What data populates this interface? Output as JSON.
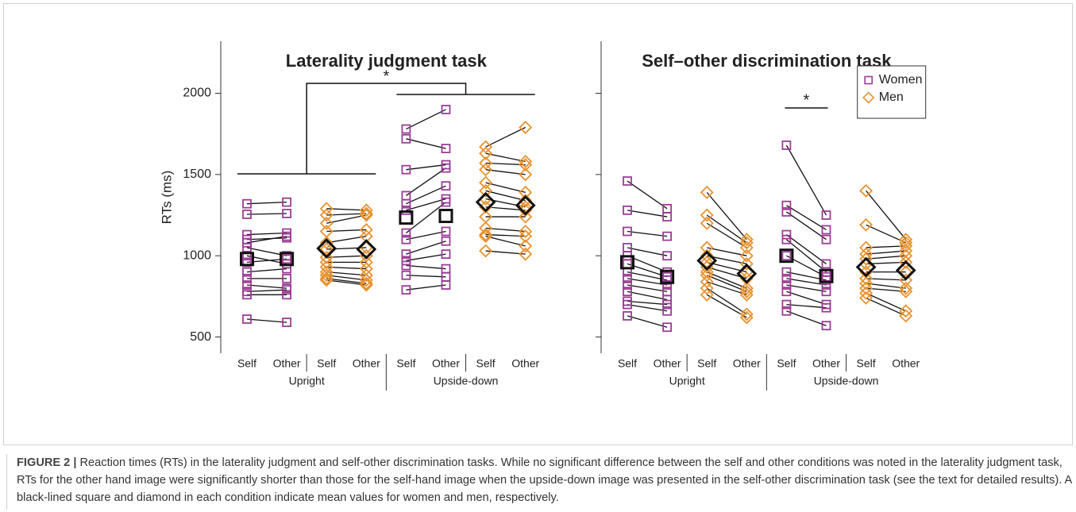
{
  "chart_data": [
    {
      "type": "paired-dot",
      "title": "Laterality judgment task",
      "ylabel": "RTs (ms)",
      "ylim": [
        400,
        2320
      ],
      "yticks": [
        500,
        1000,
        1500,
        2000
      ],
      "show_ytick_labels": true,
      "categories": [
        "Self",
        "Other",
        "Self",
        "Other",
        "Self",
        "Other",
        "Self",
        "Other"
      ],
      "group_labels": [
        "Upright",
        "Upside-down"
      ],
      "significance": {
        "label": "*"
      },
      "series": [
        {
          "color": "#9b3d96",
          "marker": "square",
          "conditions": [
            {
              "self": [
                1320,
                1255,
                1130,
                1100,
                1080,
                1050,
                1000,
                960,
                900,
                860,
                820,
                780,
                760,
                610
              ],
              "other": [
                1330,
                1260,
                1140,
                1110,
                1120,
                1000,
                950,
                980,
                920,
                860,
                800,
                790,
                760,
                590
              ],
              "mean": [
                980,
                980
              ]
            },
            {
              "self": [
                1780,
                1720,
                1530,
                1370,
                1320,
                1280,
                1140,
                1100,
                1010,
                970,
                940,
                880,
                790
              ],
              "other": [
                1900,
                1660,
                1560,
                1540,
                1430,
                1350,
                1330,
                1150,
                1090,
                1010,
                920,
                870,
                820
              ],
              "mean": [
                1235,
                1245
              ]
            }
          ]
        },
        {
          "color": "#e8922e",
          "marker": "diamond",
          "conditions": [
            {
              "self": [
                1290,
                1250,
                1200,
                1150,
                1080,
                1040,
                990,
                960,
                930,
                900,
                880,
                860,
                850
              ],
              "other": [
                1280,
                1260,
                1250,
                1160,
                1120,
                1050,
                1000,
                960,
                920,
                880,
                850,
                830,
                820
              ],
              "mean": [
                1045,
                1040
              ]
            },
            {
              "self": [
                1670,
                1630,
                1570,
                1530,
                1450,
                1400,
                1350,
                1300,
                1240,
                1170,
                1130,
                1120,
                1030
              ],
              "other": [
                1790,
                1580,
                1560,
                1500,
                1390,
                1340,
                1300,
                1280,
                1240,
                1150,
                1120,
                1060,
                1010
              ],
              "mean": [
                1330,
                1310
              ]
            }
          ]
        }
      ]
    },
    {
      "type": "paired-dot",
      "title": "Self–other discrimination task",
      "ylim": [
        400,
        2320
      ],
      "yticks": [
        500,
        1000,
        1500,
        2000
      ],
      "show_ytick_labels": false,
      "categories": [
        "Self",
        "Other",
        "Self",
        "Other",
        "Self",
        "Other",
        "Self",
        "Other"
      ],
      "group_labels": [
        "Upright",
        "Upside-down"
      ],
      "significance": {
        "label": "*"
      },
      "legend": "upper right",
      "series": [
        {
          "name": "Women",
          "color": "#9b3d96",
          "marker": "square",
          "conditions": [
            {
              "self": [
                1460,
                1280,
                1150,
                1050,
                1000,
                950,
                900,
                860,
                820,
                780,
                720,
                700,
                630
              ],
              "other": [
                1290,
                1240,
                1120,
                1000,
                900,
                870,
                850,
                820,
                780,
                730,
                700,
                660,
                560
              ],
              "mean": [
                960,
                870
              ]
            },
            {
              "self": [
                1680,
                1310,
                1270,
                1130,
                1100,
                1000,
                900,
                860,
                820,
                780,
                700,
                660
              ],
              "other": [
                1250,
                1160,
                1100,
                950,
                900,
                870,
                850,
                820,
                780,
                700,
                680,
                570
              ],
              "mean": [
                1000,
                875
              ]
            }
          ]
        },
        {
          "name": "Men",
          "color": "#e8922e",
          "marker": "diamond",
          "conditions": [
            {
              "self": [
                1390,
                1250,
                1200,
                1050,
                1000,
                960,
                930,
                900,
                880,
                840,
                800,
                760
              ],
              "other": [
                1100,
                1080,
                1050,
                1000,
                950,
                900,
                860,
                800,
                780,
                760,
                640,
                620
              ],
              "mean": [
                970,
                890
              ]
            },
            {
              "self": [
                1400,
                1190,
                1050,
                1010,
                980,
                950,
                900,
                860,
                830,
                800,
                770,
                740
              ],
              "other": [
                1100,
                1080,
                1060,
                1030,
                1000,
                960,
                900,
                850,
                800,
                780,
                660,
                630
              ],
              "mean": [
                930,
                910
              ]
            }
          ]
        }
      ]
    }
  ],
  "caption": {
    "label": "FIGURE 2 |",
    "text": "Reaction times (RTs) in the laterality judgment and self-other discrimination tasks. While no significant difference between the self and other conditions was noted in the laterality judgment task, RTs for the other hand image were significantly shorter than those for the self-hand image when the upside-down image was presented in the self-other discrimination task (see the text for detailed results). A black-lined square and diamond in each condition indicate mean values for women and men, respectively."
  }
}
